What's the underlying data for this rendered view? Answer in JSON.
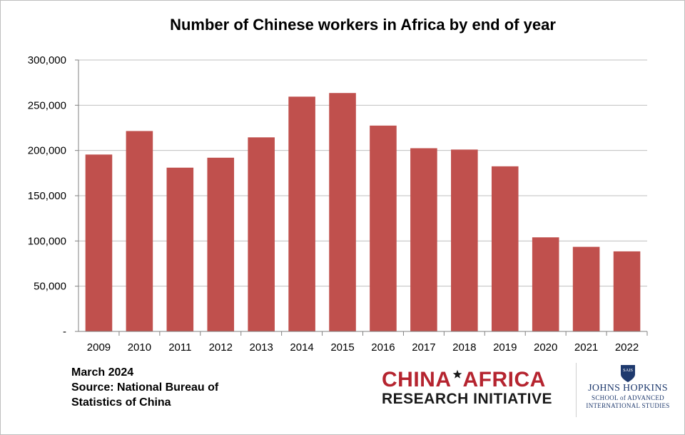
{
  "chart_data": {
    "type": "bar",
    "title": "Number of Chinese workers in Africa by end of year",
    "categories": [
      "2009",
      "2010",
      "2011",
      "2012",
      "2013",
      "2014",
      "2015",
      "2016",
      "2017",
      "2018",
      "2019",
      "2020",
      "2021",
      "2022"
    ],
    "values": [
      195500,
      221500,
      181000,
      192000,
      214500,
      259500,
      263500,
      227500,
      202500,
      201000,
      182500,
      104000,
      93500,
      88500
    ],
    "ylim": [
      0,
      300000
    ],
    "yticks": [
      0,
      50000,
      100000,
      150000,
      200000,
      250000,
      300000
    ],
    "ytick_labels": [
      "-",
      "50,000",
      "100,000",
      "150,000",
      "200,000",
      "250,000",
      "300,000"
    ],
    "xlabel": "",
    "ylabel": "",
    "grid": true,
    "bar_color": "#c0504d"
  },
  "footer": {
    "line1": "March 2024",
    "line2": "Source: National Bureau of",
    "line3": "Statistics of China"
  },
  "logos": {
    "cari_top_left": "CHINA",
    "cari_top_right": "AFRICA",
    "cari_bottom": "RESEARCH INITIATIVE",
    "jh_shield": "SAIS",
    "jh_name": "JOHNS HOPKINS",
    "jh_school_line1": "SCHOOL of ADVANCED",
    "jh_school_line2": "INTERNATIONAL STUDIES"
  }
}
